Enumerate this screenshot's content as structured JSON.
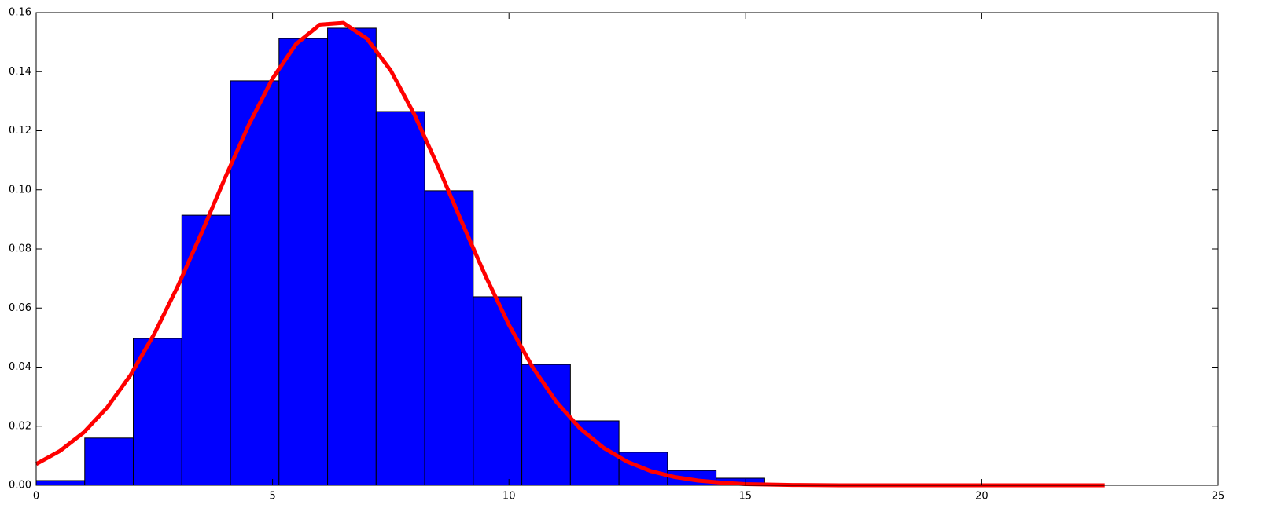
{
  "chart_data": {
    "type": "histogram",
    "bins": [
      0,
      1.0273,
      2.0545,
      3.0818,
      4.1091,
      5.1364,
      6.1636,
      7.1909,
      8.2182,
      9.2455,
      10.2727,
      11.3,
      12.3273,
      13.3545,
      14.3818,
      15.4091,
      16.4364,
      17.4636,
      18.4909,
      19.5182,
      20.5455,
      21.5727,
      22.6
    ],
    "values": [
      0.0016,
      0.016,
      0.0497,
      0.0914,
      0.1369,
      0.1512,
      0.1547,
      0.1265,
      0.0997,
      0.0638,
      0.0409,
      0.0218,
      0.0112,
      0.005,
      0.0024,
      0.0005,
      0.0001,
      0,
      0,
      0,
      0,
      0.0001
    ],
    "color": "#0000ff",
    "edgecolor": "#000000",
    "line": {
      "color": "#ff0000",
      "x": [
        0,
        0.5,
        1,
        1.5,
        2,
        2.5,
        3,
        3.5,
        4,
        4.5,
        5,
        5.5,
        6,
        6.5,
        7,
        7.5,
        8,
        8.5,
        9,
        9.5,
        10,
        10.5,
        11,
        11.5,
        12,
        12.5,
        13,
        13.5,
        14,
        14.5,
        15,
        16,
        17,
        18,
        19,
        20,
        21,
        22,
        22.6
      ],
      "values": [
        0.0072,
        0.0116,
        0.0178,
        0.0263,
        0.0374,
        0.0513,
        0.0675,
        0.0855,
        0.1042,
        0.1221,
        0.1377,
        0.1494,
        0.1559,
        0.1565,
        0.1511,
        0.1404,
        0.1255,
        0.1079,
        0.0892,
        0.071,
        0.0543,
        0.04,
        0.0283,
        0.0193,
        0.0127,
        0.008,
        0.0048,
        0.0028,
        0.0016,
        0.0009,
        0.0004,
        0.0001,
        0,
        0,
        0,
        0,
        0,
        0,
        0
      ]
    },
    "xlim": [
      0,
      25
    ],
    "ylim": [
      0,
      0.16
    ],
    "xticks": [
      0,
      5,
      10,
      15,
      20,
      25
    ],
    "yticks": [
      {
        "value": 0,
        "label": "0.00"
      },
      {
        "value": 0.02,
        "label": "0.02"
      },
      {
        "value": 0.04,
        "label": "0.04"
      },
      {
        "value": 0.06,
        "label": "0.06"
      },
      {
        "value": 0.08,
        "label": "0.08"
      },
      {
        "value": 0.1,
        "label": "0.10"
      },
      {
        "value": 0.12,
        "label": "0.12"
      },
      {
        "value": 0.14,
        "label": "0.14"
      },
      {
        "value": 0.16,
        "label": "0.16"
      }
    ]
  }
}
